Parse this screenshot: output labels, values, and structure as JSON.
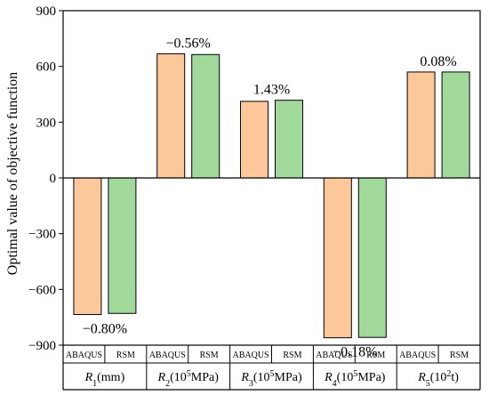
{
  "chart_data": {
    "type": "bar",
    "ylabel": "Optimal value of objective function",
    "ylim": [
      -900,
      900
    ],
    "yticks": [
      -900,
      -600,
      -300,
      0,
      300,
      600,
      900
    ],
    "series": [
      {
        "name": "ABAQUS",
        "color": "#FDC899",
        "values": [
          -735,
          668,
          412,
          -860,
          570
        ]
      },
      {
        "name": "RSM",
        "color": "#A1D99B",
        "values": [
          -729,
          664,
          418,
          -858,
          570
        ]
      }
    ],
    "groups": [
      {
        "base": "R",
        "sub": "1",
        "unit_pre": "(mm)",
        "sup": "",
        "unit_post": ""
      },
      {
        "base": "R",
        "sub": "2",
        "unit_pre": "(10",
        "sup": "5",
        "unit_post": "MPa)"
      },
      {
        "base": "R",
        "sub": "3",
        "unit_pre": "(10",
        "sup": "5",
        "unit_post": "MPa)"
      },
      {
        "base": "R",
        "sub": "4",
        "unit_pre": "(10",
        "sup": "5",
        "unit_post": "MPa)"
      },
      {
        "base": "R",
        "sub": "5",
        "unit_pre": "(10",
        "sup": "2",
        "unit_post": "t)"
      }
    ],
    "annotations": [
      "−0.80%",
      "−0.56%",
      "1.43%",
      "−0.18%",
      "0.08%"
    ]
  }
}
